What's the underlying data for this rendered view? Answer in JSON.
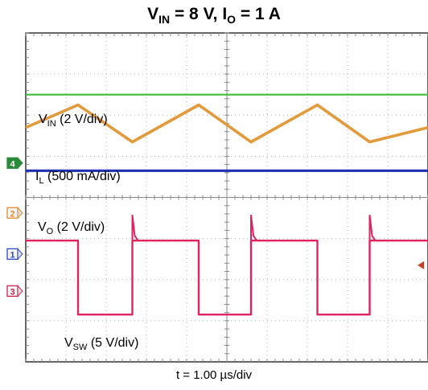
{
  "title": {
    "parts": [
      {
        "text": "V",
        "sub": "IN"
      },
      {
        "text": " = 8 V, I",
        "sub": "O"
      },
      {
        "text": " = 1 A",
        "sub": ""
      }
    ]
  },
  "chart_data": {
    "type": "line",
    "title": "VIN = 8 V, IO = 1 A",
    "xlabel": "t = 1.00 µs/div",
    "ylabel": "",
    "x_range_us": [
      0,
      10
    ],
    "grid": true,
    "divisions": {
      "x": 10,
      "y": 8
    },
    "channel_markers": [
      {
        "id": "4",
        "label": "4",
        "color": "#2a8a3a",
        "filled": true
      },
      {
        "id": "2",
        "label": "2",
        "color": "#e08a2a",
        "filled": false
      },
      {
        "id": "1",
        "label": "1",
        "color": "#2a49c8",
        "filled": false
      },
      {
        "id": "3",
        "label": "3",
        "color": "#d2204e",
        "filled": false
      }
    ],
    "series": [
      {
        "name": "VIN (2 V/div)",
        "label_main": "V",
        "label_sub": "IN",
        "label_rest": " (2 V/div)",
        "color": "#3bbf3b",
        "x": [
          0,
          10
        ],
        "y": [
          2.5,
          2.5
        ]
      },
      {
        "name": "IL (500 mA/div)",
        "label_main": "I",
        "label_sub": "L",
        "label_rest": " (500 mA/div)",
        "color": "#e39a3a",
        "x": [
          0,
          1.3,
          2.65,
          4.3,
          5.6,
          7.25,
          8.55,
          10
        ],
        "y": [
          1.7,
          2.25,
          1.35,
          2.25,
          1.35,
          2.25,
          1.35,
          1.7
        ]
      },
      {
        "name": "VO (2 V/div)",
        "label_main": "V",
        "label_sub": "O",
        "label_rest": " (2 V/div)",
        "color": "#1d2fb3",
        "x": [
          0,
          10
        ],
        "y": [
          0.65,
          0.65
        ]
      },
      {
        "name": "VSW (5 V/div)",
        "label_main": "V",
        "label_sub": "SW",
        "label_rest": " (5 V/div)",
        "color": "#e0225e",
        "x": [
          0,
          0.15,
          0.15,
          1.3,
          1.3,
          2.65,
          2.65,
          4.3,
          4.3,
          5.6,
          5.6,
          7.25,
          7.25,
          8.55,
          8.55,
          10
        ],
        "y": [
          -1.05,
          -1.05,
          -1.05,
          -1.05,
          -2.85,
          -2.85,
          -1.05,
          -1.05,
          -2.85,
          -2.85,
          -1.05,
          -1.05,
          -2.85,
          -2.85,
          -1.05,
          -1.05
        ]
      }
    ]
  }
}
